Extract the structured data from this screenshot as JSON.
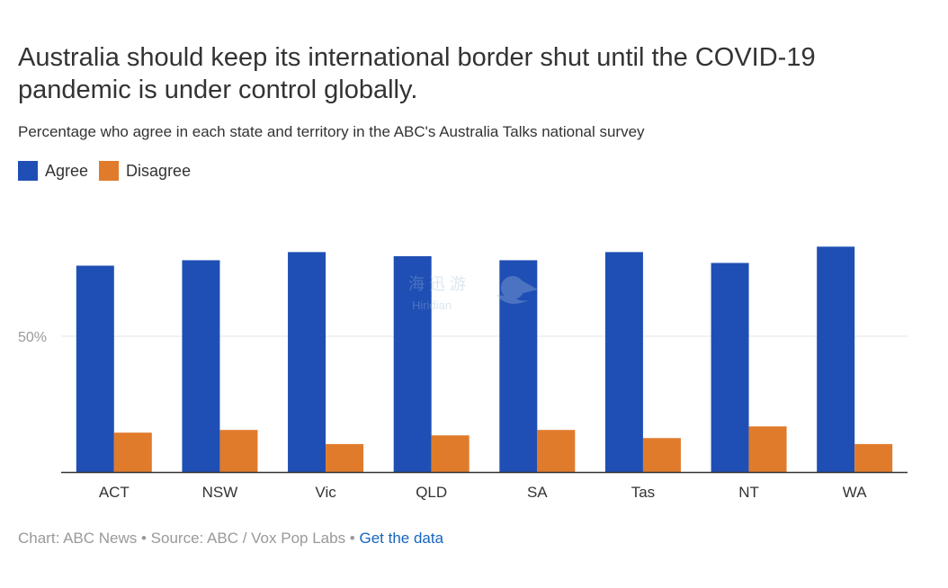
{
  "title": "Australia should keep its international border shut until the COVID-19 pandemic is under control globally.",
  "subtitle": "Percentage who agree in each state and territory in the ABC's Australia Talks national survey",
  "legend": [
    {
      "label": "Agree",
      "color": "#1f4fb4"
    },
    {
      "label": "Disagree",
      "color": "#e07b2c"
    }
  ],
  "footer": {
    "prefix": "Chart: ABC News • Source: ABC / Vox Pop Labs • ",
    "link": "Get the data"
  },
  "watermark": {
    "text_cn": "海 迅 游",
    "text_en": "Hiridian"
  },
  "chart_data": {
    "type": "bar",
    "categories": [
      "ACT",
      "NSW",
      "Vic",
      "QLD",
      "SA",
      "Tas",
      "NT",
      "WA"
    ],
    "series": [
      {
        "name": "Agree",
        "color": "#1f4fb4",
        "values": [
          76,
          78,
          81,
          79.5,
          78,
          81,
          77,
          83
        ]
      },
      {
        "name": "Disagree",
        "color": "#e07b2c",
        "values": [
          14.5,
          15.5,
          10.3,
          13.5,
          15.5,
          12.5,
          16.8,
          10.3
        ]
      }
    ],
    "ylim": [
      0,
      100
    ],
    "yticks": [
      {
        "value": 50,
        "label": "50%"
      }
    ],
    "grid": true,
    "legend_position": "top-left",
    "xlabel": "",
    "ylabel": ""
  }
}
